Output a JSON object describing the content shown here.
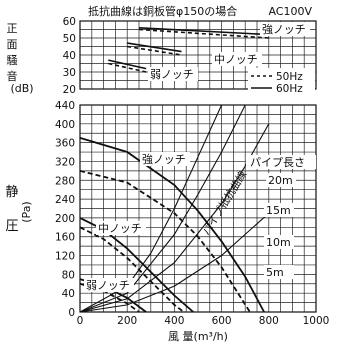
{
  "chart_data": [
    {
      "type": "line",
      "panel": "noise",
      "title": "抵抗曲線は銅板管φ150の場合",
      "subtitle": "AC100V",
      "ylabel_chars": [
        "正",
        "面",
        "騒",
        "音"
      ],
      "yunit": "(dB)",
      "ylim": [
        20,
        60
      ],
      "yticks": [
        20,
        30,
        40,
        50,
        60
      ],
      "xlim": [
        0,
        1000
      ],
      "grid": true,
      "legend": {
        "position": "bottom-right",
        "entries": [
          {
            "label": "50Hz",
            "style": "dashed"
          },
          {
            "label": "60Hz",
            "style": "solid"
          }
        ]
      },
      "series": [
        {
          "name": "強ノッチ",
          "freq": "60Hz",
          "x": [
            250,
            800
          ],
          "y": [
            56,
            52
          ]
        },
        {
          "name": "強ノッチ",
          "freq": "50Hz",
          "x": [
            250,
            800
          ],
          "y": [
            55,
            50
          ]
        },
        {
          "name": "中ノッチ",
          "freq": "60Hz",
          "x": [
            200,
            430
          ],
          "y": [
            47,
            42
          ]
        },
        {
          "name": "中ノッチ",
          "freq": "50Hz",
          "x": [
            200,
            430
          ],
          "y": [
            45,
            40
          ]
        },
        {
          "name": "弱ノッチ",
          "freq": "60Hz",
          "x": [
            120,
            280
          ],
          "y": [
            37,
            32
          ]
        },
        {
          "name": "弱ノッチ",
          "freq": "50Hz",
          "x": [
            120,
            280
          ],
          "y": [
            35,
            30
          ]
        }
      ]
    },
    {
      "type": "line",
      "panel": "pressure",
      "xlabel": "風 量(m³/h)",
      "ylabel_chars": [
        "静",
        "圧"
      ],
      "yunit": "(Pa)",
      "xlim": [
        0,
        1000
      ],
      "ylim": [
        0,
        440
      ],
      "xticks": [
        0,
        200,
        400,
        600,
        800,
        1000
      ],
      "yticks": [
        0,
        40,
        80,
        120,
        160,
        200,
        240,
        280,
        320,
        360,
        400,
        440
      ],
      "grid": true,
      "annotations": {
        "resistance_curve_label": "パイプ抵抗曲線",
        "pipe_length_label": "パイプ長さ"
      },
      "series": [
        {
          "name": "強ノッチ",
          "freq": "60Hz",
          "x": [
            0,
            200,
            400,
            500,
            600,
            700,
            780
          ],
          "y": [
            370,
            340,
            270,
            215,
            150,
            75,
            0
          ]
        },
        {
          "name": "強ノッチ",
          "freq": "50Hz",
          "x": [
            0,
            200,
            400,
            500,
            600,
            720
          ],
          "y": [
            300,
            275,
            210,
            160,
            95,
            0
          ]
        },
        {
          "name": "中ノッチ",
          "freq": "60Hz",
          "x": [
            0,
            100,
            200,
            300,
            400,
            480
          ],
          "y": [
            200,
            175,
            135,
            85,
            35,
            0
          ]
        },
        {
          "name": "中ノッチ",
          "freq": "50Hz",
          "x": [
            0,
            100,
            200,
            300,
            400,
            440
          ],
          "y": [
            180,
            155,
            115,
            65,
            15,
            0
          ]
        },
        {
          "name": "弱ノッチ",
          "freq": "60Hz",
          "x": [
            0,
            100,
            200,
            280
          ],
          "y": [
            70,
            55,
            30,
            0
          ]
        },
        {
          "name": "弱ノッチ",
          "freq": "50Hz",
          "x": [
            0,
            100,
            200,
            250
          ],
          "y": [
            60,
            45,
            18,
            0
          ]
        }
      ],
      "resistance_curves": [
        {
          "label": "20m",
          "x": [
            0,
            200,
            300,
            400,
            500,
            600
          ],
          "y": [
            0,
            55,
            125,
            220,
            330,
            440
          ]
        },
        {
          "label": "15m",
          "x": [
            0,
            200,
            400,
            500,
            600,
            700
          ],
          "y": [
            0,
            40,
            165,
            250,
            340,
            440
          ]
        },
        {
          "label": "10m",
          "x": [
            0,
            200,
            400,
            600,
            700,
            800
          ],
          "y": [
            0,
            28,
            105,
            230,
            310,
            400
          ]
        },
        {
          "label": "5m",
          "x": [
            0,
            200,
            400,
            600,
            800
          ],
          "y": [
            0,
            15,
            55,
            120,
            210
          ]
        }
      ]
    }
  ]
}
